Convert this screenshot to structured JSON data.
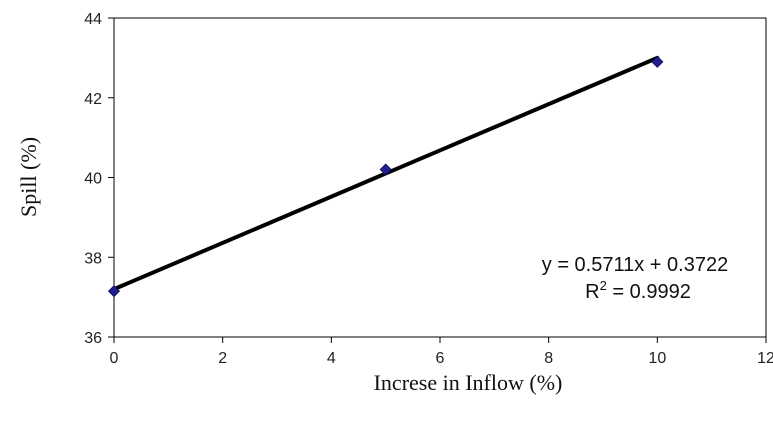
{
  "chart_data": {
    "type": "scatter",
    "title": "",
    "xlabel": "Increse in Inflow (%)",
    "ylabel": "Spill (%)",
    "xlim": [
      0,
      12
    ],
    "ylim": [
      36,
      44
    ],
    "xticks": [
      "0",
      "2",
      "4",
      "6",
      "8",
      "10",
      "12"
    ],
    "yticks": [
      "36",
      "38",
      "40",
      "42",
      "44"
    ],
    "grid": false,
    "legend": "none",
    "series": [
      {
        "x": [
          0,
          5,
          10
        ],
        "y": [
          37.15,
          40.2,
          42.9
        ],
        "marker": "diamond",
        "color": "#1f1f8f"
      }
    ],
    "trendline": {
      "type": "linear",
      "x": [
        0,
        10
      ],
      "y": [
        37.2,
        43.0
      ],
      "color": "#000000"
    },
    "annotation": {
      "equation": "y = 0.5711x + 0.3722",
      "r2_prefix": "R",
      "r2_exponent": "2",
      "r2_value": " = 0.9992"
    }
  }
}
